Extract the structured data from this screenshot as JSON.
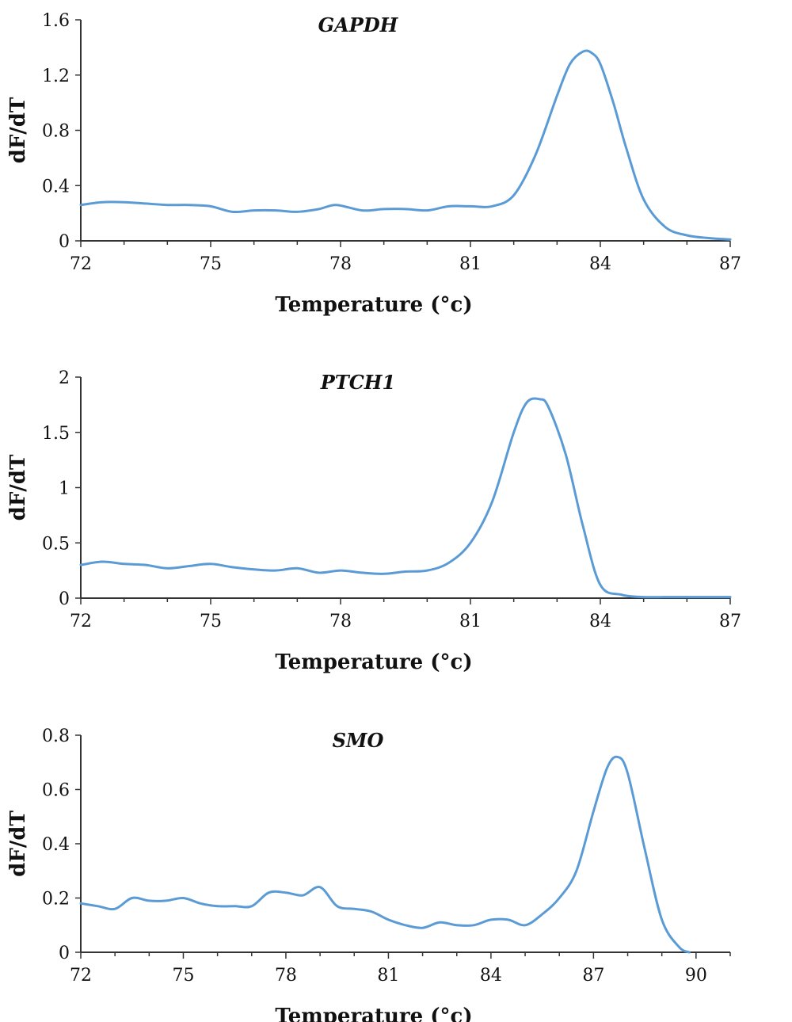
{
  "figure": {
    "line_color": "#5b9bd5"
  },
  "chart_data": [
    {
      "type": "line",
      "title": "GAPDH",
      "xlabel": "Temperature (°c)",
      "ylabel": "dF/dT",
      "xlim": [
        72,
        87
      ],
      "ylim": [
        0,
        1.6
      ],
      "xticks": [
        72,
        75,
        78,
        81,
        84,
        87
      ],
      "xtick_labels": [
        "72",
        "75",
        "78",
        "81",
        "84",
        "87"
      ],
      "yticks": [
        0,
        0.4,
        0.8,
        1.2,
        1.6
      ],
      "ytick_labels": [
        "0",
        "0.4",
        "0.8",
        "1.2",
        "1.6"
      ],
      "minor_xticks": [
        73,
        74,
        76,
        77,
        79,
        80,
        82,
        83,
        85,
        86
      ],
      "series": [
        {
          "x": [
            72,
            72.5,
            73,
            73.5,
            74,
            74.5,
            75,
            75.5,
            76,
            76.5,
            77,
            77.5,
            77.9,
            78.5,
            79,
            79.5,
            80,
            80.5,
            81,
            81.5,
            82,
            82.5,
            83,
            83.3,
            83.6,
            83.8,
            84,
            84.3,
            84.6,
            85,
            85.5,
            86,
            86.5,
            87
          ],
          "y": [
            0.26,
            0.28,
            0.28,
            0.27,
            0.26,
            0.26,
            0.25,
            0.21,
            0.22,
            0.22,
            0.21,
            0.23,
            0.26,
            0.22,
            0.23,
            0.23,
            0.22,
            0.25,
            0.25,
            0.25,
            0.33,
            0.62,
            1.05,
            1.28,
            1.37,
            1.36,
            1.28,
            1.0,
            0.67,
            0.3,
            0.1,
            0.04,
            0.02,
            0.01
          ]
        }
      ]
    },
    {
      "type": "line",
      "title": "PTCH1",
      "xlabel": "Temperature (°c)",
      "ylabel": "dF/dT",
      "xlim": [
        72,
        87
      ],
      "ylim": [
        0,
        2
      ],
      "xticks": [
        72,
        75,
        78,
        81,
        84,
        87
      ],
      "xtick_labels": [
        "72",
        "75",
        "78",
        "81",
        "84",
        "87"
      ],
      "yticks": [
        0,
        0.5,
        1,
        1.5,
        2
      ],
      "ytick_labels": [
        "0",
        "0.5",
        "1",
        "1.5",
        "2"
      ],
      "minor_xticks": [
        73,
        74,
        76,
        77,
        79,
        80,
        82,
        83,
        85,
        86
      ],
      "series": [
        {
          "x": [
            72,
            72.5,
            73,
            73.5,
            74,
            74.5,
            75,
            75.5,
            76,
            76.5,
            77,
            77.5,
            78,
            78.5,
            79,
            79.5,
            80,
            80.5,
            81,
            81.5,
            82,
            82.3,
            82.6,
            82.8,
            83.2,
            83.6,
            84,
            84.5,
            85,
            85.5,
            86,
            87
          ],
          "y": [
            0.3,
            0.33,
            0.31,
            0.3,
            0.27,
            0.29,
            0.31,
            0.28,
            0.26,
            0.25,
            0.27,
            0.23,
            0.25,
            0.23,
            0.22,
            0.24,
            0.25,
            0.32,
            0.5,
            0.87,
            1.5,
            1.77,
            1.8,
            1.73,
            1.3,
            0.65,
            0.12,
            0.03,
            0.01,
            0.01,
            0.01,
            0.01
          ]
        }
      ]
    },
    {
      "type": "line",
      "title": "SMO",
      "xlabel": "Temperature (°c)",
      "ylabel": "dF/dT",
      "xlim": [
        72,
        91
      ],
      "ylim": [
        0,
        0.8
      ],
      "xticks": [
        72,
        75,
        78,
        81,
        84,
        87,
        90
      ],
      "xtick_labels": [
        "72",
        "75",
        "78",
        "81",
        "84",
        "87",
        "90"
      ],
      "yticks": [
        0,
        0.2,
        0.4,
        0.6,
        0.8
      ],
      "ytick_labels": [
        "0",
        "0.2",
        "0.4",
        "0.6",
        "0.8"
      ],
      "minor_xticks": [
        73,
        74,
        76,
        77,
        79,
        80,
        82,
        83,
        85,
        86,
        88,
        89,
        91
      ],
      "series": [
        {
          "x": [
            72,
            72.5,
            73,
            73.5,
            74,
            74.5,
            75,
            75.5,
            76,
            76.5,
            77,
            77.5,
            78,
            78.5,
            79,
            79.5,
            80,
            80.5,
            81,
            81.5,
            82,
            82.5,
            83,
            83.5,
            84,
            84.5,
            85,
            85.5,
            86,
            86.5,
            87,
            87.4,
            87.7,
            88,
            88.5,
            89,
            89.5,
            89.8
          ],
          "y": [
            0.18,
            0.17,
            0.16,
            0.2,
            0.19,
            0.19,
            0.2,
            0.18,
            0.17,
            0.17,
            0.17,
            0.22,
            0.22,
            0.21,
            0.24,
            0.17,
            0.16,
            0.15,
            0.12,
            0.1,
            0.09,
            0.11,
            0.1,
            0.1,
            0.12,
            0.12,
            0.1,
            0.14,
            0.2,
            0.3,
            0.52,
            0.68,
            0.72,
            0.66,
            0.38,
            0.12,
            0.02,
            0.0
          ]
        }
      ]
    }
  ]
}
